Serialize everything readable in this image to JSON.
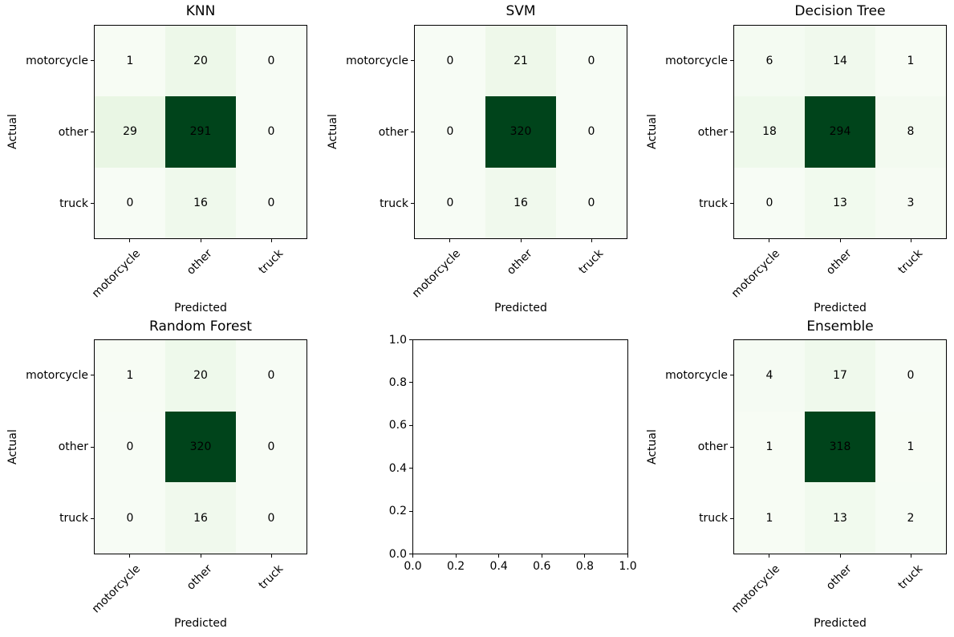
{
  "figure": {
    "background": "#ffffff",
    "text_color": "#000000"
  },
  "colormap": {
    "name": "Greens",
    "stops": [
      "#f7fcf5",
      "#e5f5e0",
      "#c7e9c0",
      "#a1d99b",
      "#74c476",
      "#41ab5d",
      "#238b45",
      "#006d2c",
      "#00441b"
    ]
  },
  "chart_data": [
    {
      "type": "heatmap",
      "title": "KNN",
      "xlabel": "Predicted",
      "ylabel": "Actual",
      "x_categories": [
        "motorcycle",
        "other",
        "truck"
      ],
      "y_categories": [
        "motorcycle",
        "other",
        "truck"
      ],
      "matrix": [
        [
          1,
          20,
          0
        ],
        [
          29,
          291,
          0
        ],
        [
          0,
          16,
          0
        ]
      ],
      "annotation_color": "#000000",
      "legend": "none",
      "grid": false
    },
    {
      "type": "heatmap",
      "title": "SVM",
      "xlabel": "Predicted",
      "ylabel": "Actual",
      "x_categories": [
        "motorcycle",
        "other",
        "truck"
      ],
      "y_categories": [
        "motorcycle",
        "other",
        "truck"
      ],
      "matrix": [
        [
          0,
          21,
          0
        ],
        [
          0,
          320,
          0
        ],
        [
          0,
          16,
          0
        ]
      ],
      "annotation_color": "#000000",
      "legend": "none",
      "grid": false
    },
    {
      "type": "heatmap",
      "title": "Decision Tree",
      "xlabel": "Predicted",
      "ylabel": "Actual",
      "x_categories": [
        "motorcycle",
        "other",
        "truck"
      ],
      "y_categories": [
        "motorcycle",
        "other",
        "truck"
      ],
      "matrix": [
        [
          6,
          14,
          1
        ],
        [
          18,
          294,
          8
        ],
        [
          0,
          13,
          3
        ]
      ],
      "annotation_color": "#000000",
      "legend": "none",
      "grid": false
    },
    {
      "type": "heatmap",
      "title": "Random Forest",
      "xlabel": "Predicted",
      "ylabel": "Actual",
      "x_categories": [
        "motorcycle",
        "other",
        "truck"
      ],
      "y_categories": [
        "motorcycle",
        "other",
        "truck"
      ],
      "matrix": [
        [
          1,
          20,
          0
        ],
        [
          0,
          320,
          0
        ],
        [
          0,
          16,
          0
        ]
      ],
      "annotation_color": "#000000",
      "legend": "none",
      "grid": false
    },
    {
      "type": "empty-axes",
      "title": "",
      "xlim": [
        0.0,
        1.0
      ],
      "ylim": [
        0.0,
        1.0
      ],
      "xticks": [
        "0.0",
        "0.2",
        "0.4",
        "0.6",
        "0.8",
        "1.0"
      ],
      "yticks": [
        "0.0",
        "0.2",
        "0.4",
        "0.6",
        "0.8",
        "1.0"
      ],
      "grid": false
    },
    {
      "type": "heatmap",
      "title": "Ensemble",
      "xlabel": "Predicted",
      "ylabel": "Actual",
      "x_categories": [
        "motorcycle",
        "other",
        "truck"
      ],
      "y_categories": [
        "motorcycle",
        "other",
        "truck"
      ],
      "matrix": [
        [
          4,
          17,
          0
        ],
        [
          1,
          318,
          1
        ],
        [
          1,
          13,
          2
        ]
      ],
      "annotation_color": "#000000",
      "legend": "none",
      "grid": false
    }
  ]
}
